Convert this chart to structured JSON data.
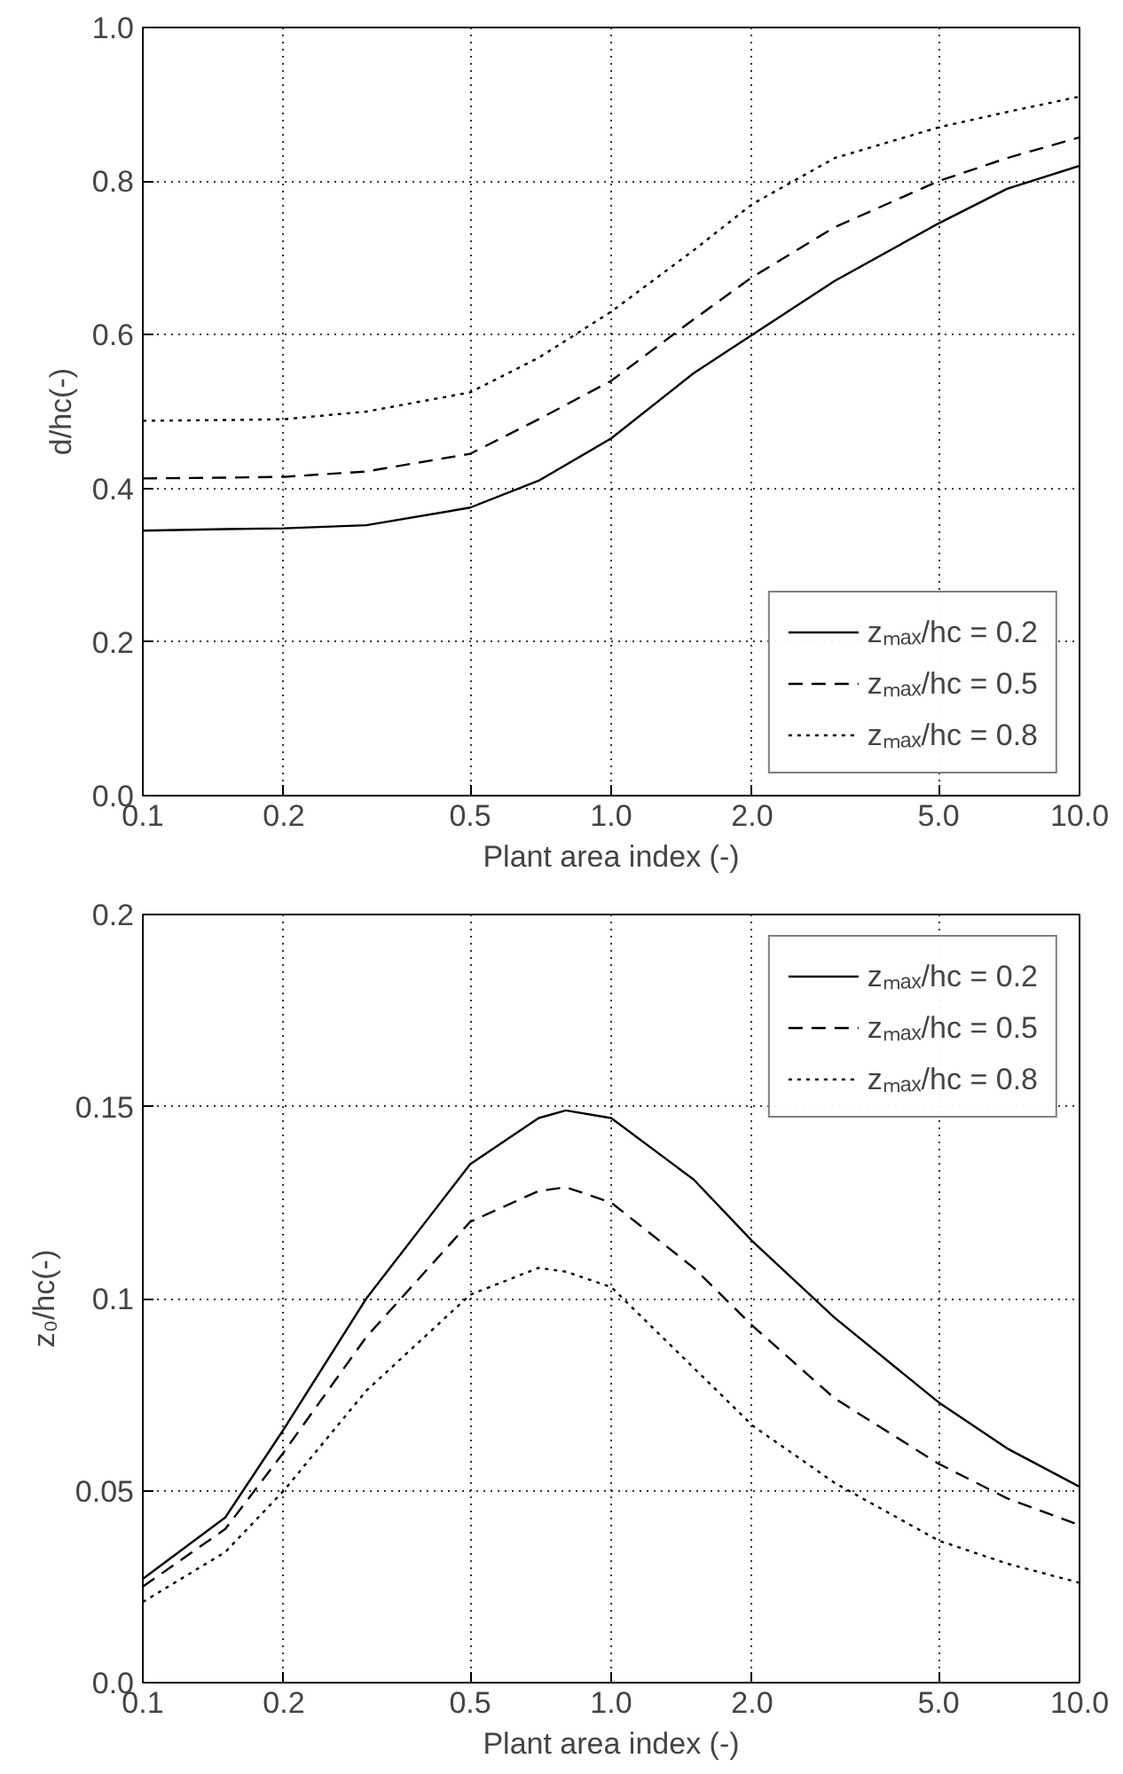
{
  "chart_data": [
    {
      "type": "line",
      "xlabel": "Plant area index (-)",
      "ylabel": "d/hc(-)",
      "log": "x",
      "grid": true,
      "legend": "bottom right",
      "xlim": [
        0.1,
        10
      ],
      "ylim": [
        0,
        1
      ],
      "xticks": [
        {
          "value": 0.1,
          "label": "0.1"
        },
        {
          "value": 0.2,
          "label": "0.2"
        },
        {
          "value": 0.5,
          "label": "0.5"
        },
        {
          "value": 1,
          "label": "1.0"
        },
        {
          "value": 2,
          "label": "2.0"
        },
        {
          "value": 5,
          "label": "5.0"
        },
        {
          "value": 10,
          "label": "10.0"
        }
      ],
      "yticks": [
        {
          "value": 0,
          "label": "0.0"
        },
        {
          "value": 0.2,
          "label": "0.2"
        },
        {
          "value": 0.4,
          "label": "0.4"
        },
        {
          "value": 0.6,
          "label": "0.6"
        },
        {
          "value": 0.8,
          "label": "0.8"
        },
        {
          "value": 1,
          "label": "1.0"
        }
      ],
      "x": [
        0.1,
        0.15,
        0.2,
        0.3,
        0.5,
        0.7,
        1.0,
        1.5,
        2.0,
        3.0,
        5.0,
        7.0,
        10.0
      ],
      "series": [
        {
          "name": "zₘₐₓ/hc = 0.2",
          "color": "#000000",
          "line_style": "solid",
          "values": [
            0.345,
            0.347,
            0.348,
            0.352,
            0.375,
            0.41,
            0.465,
            0.55,
            0.6,
            0.67,
            0.745,
            0.79,
            0.82
          ]
        },
        {
          "name": "zₘₐₓ/hc = 0.5",
          "color": "#000000",
          "line_style": "dashed",
          "values": [
            0.413,
            0.414,
            0.415,
            0.422,
            0.445,
            0.49,
            0.54,
            0.62,
            0.675,
            0.74,
            0.8,
            0.83,
            0.857
          ]
        },
        {
          "name": "zₘₐₓ/hc = 0.8",
          "color": "#000000",
          "line_style": "dotted",
          "values": [
            0.488,
            0.489,
            0.49,
            0.5,
            0.525,
            0.57,
            0.63,
            0.71,
            0.77,
            0.83,
            0.87,
            0.89,
            0.91
          ]
        }
      ]
    },
    {
      "type": "line",
      "xlabel": "Plant area index (-)",
      "ylabel": "z₀/hc(-)",
      "log": "x",
      "grid": true,
      "legend": "top right",
      "xlim": [
        0.1,
        10
      ],
      "ylim": [
        0,
        0.2
      ],
      "xticks": [
        {
          "value": 0.1,
          "label": "0.1"
        },
        {
          "value": 0.2,
          "label": "0.2"
        },
        {
          "value": 0.5,
          "label": "0.5"
        },
        {
          "value": 1,
          "label": "1.0"
        },
        {
          "value": 2,
          "label": "2.0"
        },
        {
          "value": 5,
          "label": "5.0"
        },
        {
          "value": 10,
          "label": "10.0"
        }
      ],
      "yticks": [
        {
          "value": 0,
          "label": "0.0"
        },
        {
          "value": 0.05,
          "label": "0.05"
        },
        {
          "value": 0.1,
          "label": "0.1"
        },
        {
          "value": 0.15,
          "label": "0.15"
        },
        {
          "value": 0.2,
          "label": "0.2"
        }
      ],
      "x": [
        0.1,
        0.15,
        0.2,
        0.3,
        0.5,
        0.7,
        0.8,
        1.0,
        1.5,
        2.0,
        3.0,
        5.0,
        7.0,
        10.0
      ],
      "series": [
        {
          "name": "zₘₐₓ/hc = 0.2",
          "color": "#000000",
          "line_style": "solid",
          "values": [
            0.027,
            0.043,
            0.066,
            0.1,
            0.135,
            0.147,
            0.149,
            0.147,
            0.131,
            0.115,
            0.095,
            0.073,
            0.061,
            0.051
          ]
        },
        {
          "name": "zₘₐₓ/hc = 0.5",
          "color": "#000000",
          "line_style": "dashed",
          "values": [
            0.025,
            0.04,
            0.06,
            0.09,
            0.12,
            0.128,
            0.129,
            0.125,
            0.108,
            0.093,
            0.074,
            0.057,
            0.048,
            0.041
          ]
        },
        {
          "name": "zₘₐₓ/hc = 0.8",
          "color": "#000000",
          "line_style": "dotted",
          "values": [
            0.021,
            0.034,
            0.05,
            0.076,
            0.101,
            0.108,
            0.107,
            0.103,
            0.082,
            0.067,
            0.052,
            0.037,
            0.031,
            0.026
          ]
        }
      ]
    }
  ]
}
